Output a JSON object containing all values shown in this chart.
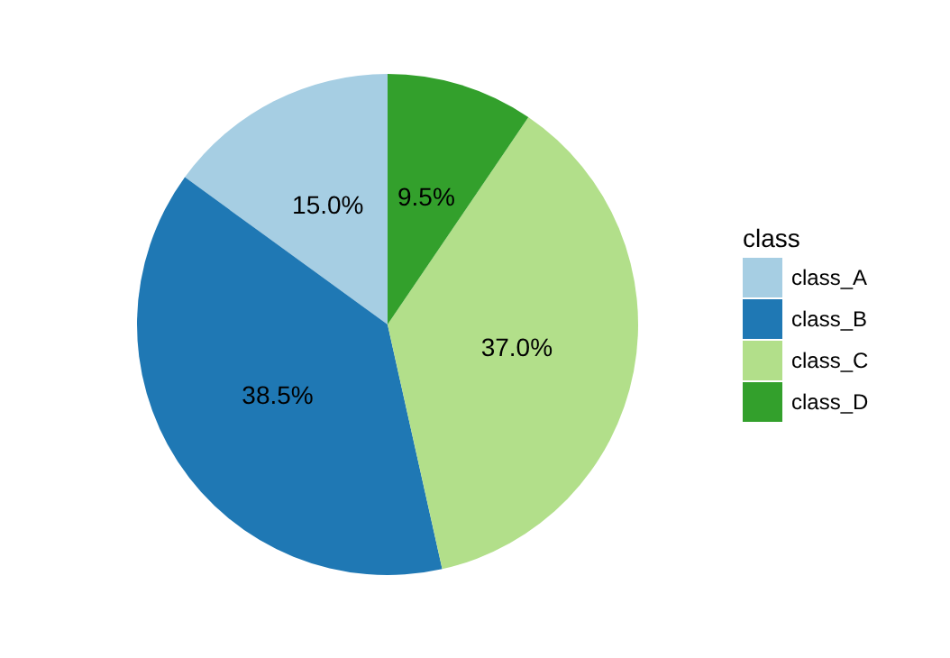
{
  "chart_data": {
    "type": "pie",
    "legend_title": "class",
    "categories": [
      "class_A",
      "class_B",
      "class_C",
      "class_D"
    ],
    "values": [
      15,
      38.5,
      37,
      9.5
    ],
    "colors": [
      "#a6cee3",
      "#1f78b4",
      "#b2df8a",
      "#33a02c"
    ],
    "value_labels": [
      "15.0%",
      "38.5%",
      "37.0%",
      "9.5%"
    ],
    "legend": "right"
  }
}
